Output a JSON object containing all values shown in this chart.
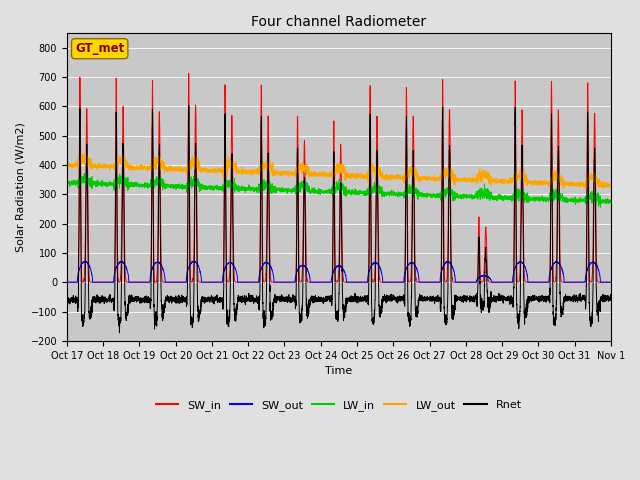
{
  "title": "Four channel Radiometer",
  "xlabel": "Time",
  "ylabel": "Solar Radiation (W/m2)",
  "xlabels": [
    "Oct 17",
    "Oct 18",
    "Oct 19",
    "Oct 20",
    "Oct 21",
    "Oct 22",
    "Oct 23",
    "Oct 24",
    "Oct 25",
    "Oct 26",
    "Oct 27",
    "Oct 28",
    "Oct 29",
    "Oct 30",
    "Oct 31",
    "Nov 1"
  ],
  "ylim": [
    -200,
    850
  ],
  "yticks": [
    -200,
    -100,
    0,
    100,
    200,
    300,
    400,
    500,
    600,
    700,
    800
  ],
  "colors": {
    "SW_in": "#ff0000",
    "SW_out": "#0000ff",
    "LW_in": "#00cc00",
    "LW_out": "#ffa500",
    "Rnet": "#000000"
  },
  "station_label": "GT_met",
  "station_label_color": "#8B0000",
  "station_box_facecolor": "#ffd700",
  "station_box_edgecolor": "#8B6914",
  "n_days": 15,
  "bg_color": "#e0e0e0",
  "plot_bg_color": "#c8c8c8",
  "linewidth": 0.7,
  "legend_fontsize": 8,
  "tick_fontsize": 7,
  "title_fontsize": 10,
  "axis_label_fontsize": 8
}
